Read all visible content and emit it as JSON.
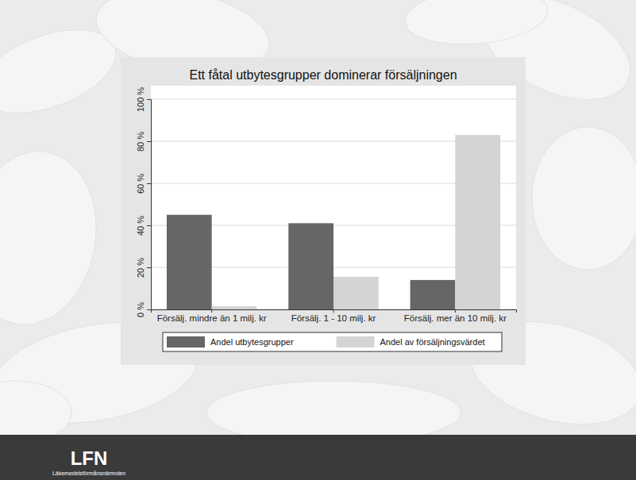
{
  "chart_data": {
    "type": "bar",
    "title": "Ett fåtal utbytesgrupper dominerar försäljningen",
    "categories": [
      "Försälj. mindre än 1 milj. kr",
      "Försälj. 1 - 10 milj. kr",
      "Försälj. mer än 10 milj. kr"
    ],
    "series": [
      {
        "name": "Andel utbytesgrupper",
        "color": "#666666",
        "values": [
          45,
          41,
          14
        ]
      },
      {
        "name": "Andel av försäljningsvärdet",
        "color": "#d4d4d4",
        "values": [
          1.5,
          15.5,
          83
        ]
      }
    ],
    "ylim": [
      0,
      100
    ],
    "yticks": [
      {
        "value": 0,
        "label": "0 %"
      },
      {
        "value": 20,
        "label": "20 %"
      },
      {
        "value": 40,
        "label": "40 %"
      },
      {
        "value": 60,
        "label": "60 %"
      },
      {
        "value": 80,
        "label": "80 %"
      },
      {
        "value": 100,
        "label": "100 %"
      }
    ],
    "grid": true,
    "legend": "bottom"
  },
  "footer": {
    "logo": "LFN",
    "organisation": "Läkemedelsförmånsnämnden"
  }
}
